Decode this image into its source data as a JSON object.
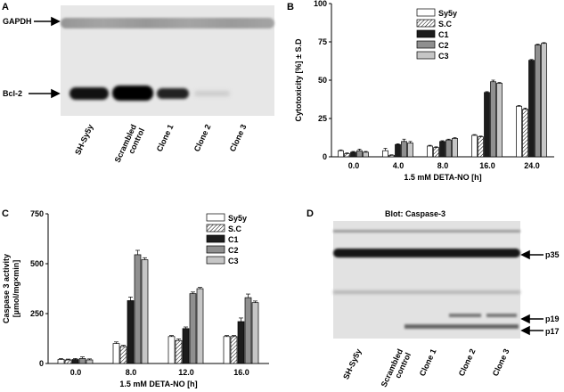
{
  "panels": {
    "A": {
      "label": "A",
      "band_labels": [
        "GAPDH",
        "Bcl-2"
      ],
      "lanes": [
        "SH-Sy5y",
        "Scrambled\ncontrol",
        "Clone 1",
        "Clone 2",
        "Clone 3"
      ]
    },
    "B": {
      "label": "B"
    },
    "C": {
      "label": "C"
    },
    "D": {
      "label": "D",
      "title": "Blot: Caspase-3",
      "band_labels": [
        "p35",
        "p19",
        "p17"
      ],
      "lanes": [
        "SH-Sy5y",
        "Scrambled\ncontrol",
        "Clone 1",
        "Clone 2",
        "Clone 3"
      ]
    }
  },
  "chart_data": [
    {
      "type": "bar",
      "panel": "B",
      "xlabel": "1.5 mM DETA-NO [h]",
      "ylabel": "Cytotoxicity [%] ± S.D",
      "ylim": [
        0,
        100
      ],
      "yticks": [
        0,
        25,
        50,
        75,
        100
      ],
      "categories": [
        "0.0",
        "4.0",
        "8.0",
        "16.0",
        "24.0"
      ],
      "legend": "top-right",
      "series": [
        {
          "name": "Sy5y",
          "values": [
            4,
            4,
            7,
            14,
            33
          ],
          "errors": [
            0.5,
            1.5,
            0.5,
            0.5,
            0.5
          ]
        },
        {
          "name": "S.C",
          "values": [
            2,
            1,
            6,
            13,
            31
          ],
          "errors": [
            0.5,
            0.3,
            0.5,
            0.5,
            0.8
          ]
        },
        {
          "name": "C1",
          "values": [
            3,
            8,
            10,
            42,
            63
          ],
          "errors": [
            0.5,
            0.5,
            0.5,
            0.5,
            0.5
          ]
        },
        {
          "name": "C2",
          "values": [
            4,
            10,
            11,
            49,
            73
          ],
          "errors": [
            1,
            1.5,
            0.5,
            1,
            0.5
          ]
        },
        {
          "name": "C3",
          "values": [
            3,
            9,
            12,
            48,
            74
          ],
          "errors": [
            0.5,
            1,
            0.5,
            0.5,
            0.5
          ]
        }
      ]
    },
    {
      "type": "bar",
      "panel": "C",
      "xlabel": "1.5 mM DETA-NO [h]",
      "ylabel": "Caspase 3 activity",
      "ylabel2": "[µmol/mg×min]",
      "ylim": [
        0,
        750
      ],
      "yticks": [
        0,
        250,
        500,
        750
      ],
      "categories": [
        "0.0",
        "8.0",
        "12.0",
        "16.0"
      ],
      "legend": "top-right",
      "series": [
        {
          "name": "Sy5y",
          "values": [
            20,
            100,
            135,
            135
          ],
          "errors": [
            5,
            8,
            5,
            5
          ]
        },
        {
          "name": "S.C",
          "values": [
            18,
            85,
            115,
            135
          ],
          "errors": [
            4,
            6,
            8,
            5
          ]
        },
        {
          "name": "C1",
          "values": [
            20,
            315,
            175,
            210
          ],
          "errors": [
            5,
            18,
            8,
            18
          ]
        },
        {
          "name": "C2",
          "values": [
            25,
            545,
            350,
            330
          ],
          "errors": [
            8,
            22,
            8,
            18
          ]
        },
        {
          "name": "C3",
          "values": [
            18,
            520,
            375,
            305
          ],
          "errors": [
            5,
            10,
            6,
            8
          ]
        }
      ]
    }
  ]
}
